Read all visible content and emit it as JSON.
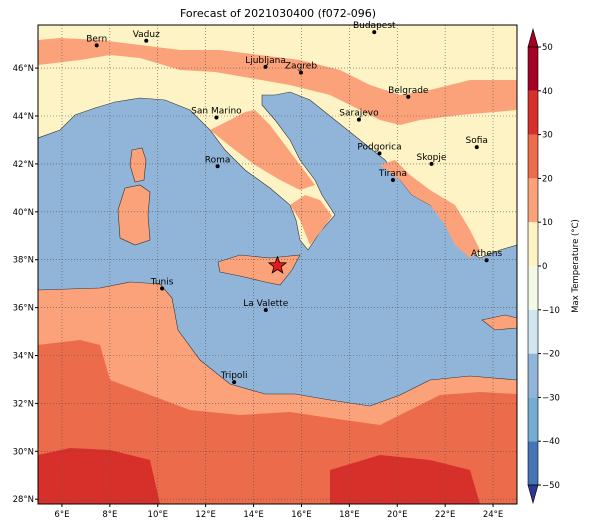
{
  "title": "Forecast of 2021030400 (f072-096)",
  "map": {
    "lonlim": [
      5,
      25
    ],
    "latlim": [
      27.8,
      47.8
    ],
    "lonticks": [
      {
        "value": 6,
        "label": "6°E"
      },
      {
        "value": 8,
        "label": "8°E"
      },
      {
        "value": 10,
        "label": "10°E"
      },
      {
        "value": 12,
        "label": "12°E"
      },
      {
        "value": 14,
        "label": "14°E"
      },
      {
        "value": 16,
        "label": "16°E"
      },
      {
        "value": 18,
        "label": "18°E"
      },
      {
        "value": 20,
        "label": "20°E"
      },
      {
        "value": 22,
        "label": "22°E"
      },
      {
        "value": 24,
        "label": "24°E"
      }
    ],
    "latticks": [
      {
        "value": 28,
        "label": "28°N"
      },
      {
        "value": 30,
        "label": "30°N"
      },
      {
        "value": 32,
        "label": "32°N"
      },
      {
        "value": 34,
        "label": "34°N"
      },
      {
        "value": 36,
        "label": "36°N"
      },
      {
        "value": 38,
        "label": "38°N"
      },
      {
        "value": 40,
        "label": "40°N"
      },
      {
        "value": 42,
        "label": "42°N"
      },
      {
        "value": 44,
        "label": "44°N"
      },
      {
        "value": 46,
        "label": "46°N"
      }
    ],
    "cities": [
      {
        "name": "Bern",
        "lon": 7.45,
        "lat": 46.95
      },
      {
        "name": "Vaduz",
        "lon": 9.52,
        "lat": 47.14
      },
      {
        "name": "Budapest",
        "lon": 19.04,
        "lat": 47.5
      },
      {
        "name": "Ljubljana",
        "lon": 14.5,
        "lat": 46.05
      },
      {
        "name": "Zagreb",
        "lon": 15.98,
        "lat": 45.81
      },
      {
        "name": "Belgrade",
        "lon": 20.46,
        "lat": 44.8
      },
      {
        "name": "San Marino",
        "lon": 12.45,
        "lat": 43.94
      },
      {
        "name": "Sarajevo",
        "lon": 18.4,
        "lat": 43.85
      },
      {
        "name": "Sofia",
        "lon": 23.32,
        "lat": 42.7
      },
      {
        "name": "Roma",
        "lon": 12.5,
        "lat": 41.9
      },
      {
        "name": "Podgorica",
        "lon": 19.26,
        "lat": 42.44
      },
      {
        "name": "Skopje",
        "lon": 21.43,
        "lat": 42.0
      },
      {
        "name": "Tirana",
        "lon": 19.82,
        "lat": 41.33
      },
      {
        "name": "Athens",
        "lon": 23.73,
        "lat": 37.98
      },
      {
        "name": "Tunis",
        "lon": 10.18,
        "lat": 36.8
      },
      {
        "name": "La Valette",
        "lon": 14.51,
        "lat": 35.9
      },
      {
        "name": "Tripoli",
        "lon": 13.19,
        "lat": 32.89
      }
    ],
    "marker": {
      "lon": 15.0,
      "lat": 37.75
    }
  },
  "colorbar": {
    "label": "Max Temperature (°C)",
    "lim": [
      -50,
      50
    ],
    "levels": [
      -50,
      -40,
      -30,
      -20,
      -10,
      0,
      10,
      20,
      30,
      40,
      50
    ],
    "colors": [
      "#313695",
      "#4575b4",
      "#74add1",
      "#91b5d9",
      "#cfe6f1",
      "#f2f9e4",
      "#fdf3c4",
      "#fba27b",
      "#ec6b4a",
      "#d7302a",
      "#a50026"
    ],
    "ticks": [
      {
        "value": -50,
        "label": "−50"
      },
      {
        "value": -40,
        "label": "−40"
      },
      {
        "value": -30,
        "label": "−30"
      },
      {
        "value": -20,
        "label": "−20"
      },
      {
        "value": -10,
        "label": "−10"
      },
      0,
      10,
      20,
      30,
      40,
      50
    ]
  }
}
